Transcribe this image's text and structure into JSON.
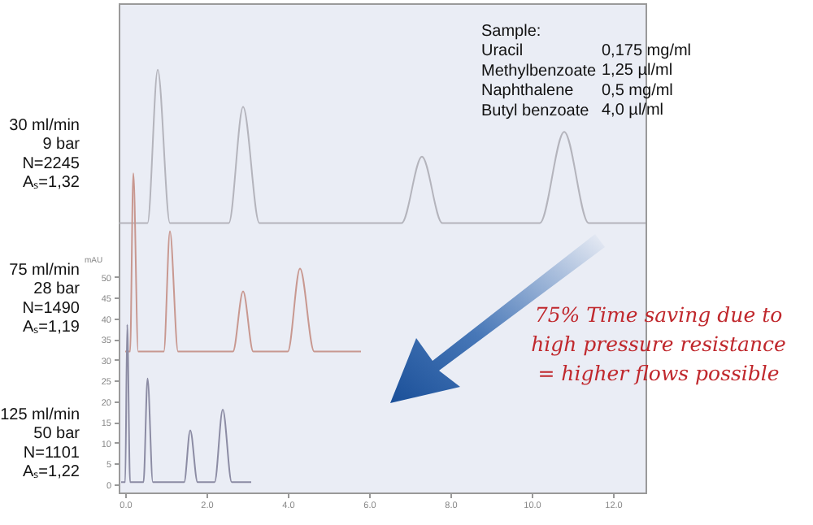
{
  "chart_data": {
    "type": "line",
    "ylabel": "mAU",
    "xlim": [
      -0.16,
      12.8
    ],
    "xticks": [
      {
        "value": 0,
        "label": "0.0"
      },
      {
        "value": 2,
        "label": "2.0"
      },
      {
        "value": 4,
        "label": "4.0"
      },
      {
        "value": 6,
        "label": "6.0"
      },
      {
        "value": 8,
        "label": "8.0"
      },
      {
        "value": 10,
        "label": "10.0"
      },
      {
        "value": 12,
        "label": "12.0"
      }
    ],
    "ylim": [
      -2,
      116
    ],
    "yticks": [
      0,
      5,
      10,
      15,
      20,
      25,
      30,
      35,
      40,
      45,
      50
    ],
    "grid": false,
    "marker": "none",
    "series": [
      {
        "color": "#b4b4bc",
        "x": [
          -0.15,
          0.55,
          0.8,
          1.1,
          2.55,
          2.9,
          3.3,
          6.8,
          7.3,
          7.8,
          10.2,
          10.8,
          11.4,
          12.8
        ],
        "values": [
          63,
          63,
          100,
          63,
          63,
          91,
          63,
          63,
          79,
          63,
          63,
          85,
          63,
          63
        ]
      },
      {
        "color": "#c89890",
        "x": [
          0,
          0.12,
          0.2,
          0.32,
          0.95,
          1.1,
          1.3,
          2.65,
          2.9,
          3.15,
          4.0,
          4.3,
          4.65,
          5.8
        ],
        "values": [
          32,
          32,
          75,
          32,
          32,
          61,
          32,
          32,
          46.5,
          32,
          32,
          52,
          32,
          32
        ]
      },
      {
        "color": "#8c8ca4",
        "x": [
          -0.1,
          0,
          0.05,
          0.12,
          0.45,
          0.55,
          0.68,
          1.45,
          1.6,
          1.78,
          2.2,
          2.4,
          2.62,
          3.1
        ],
        "values": [
          0.5,
          0.5,
          38.5,
          0.5,
          0.5,
          25.5,
          0.5,
          0.5,
          13,
          0.5,
          0.5,
          18,
          0.5,
          0.5
        ]
      }
    ],
    "annotations": [
      "30 ml/min\n9 bar\nN=2245\nAₛ=1,32",
      "75 ml/min\n28 bar\nN=1490\nAₛ=1,19",
      "125 ml/min\n50 bar\nN=1101\nAₛ=1,22",
      "Sample:\nUracil\nMethylbenzoate\nNaphthalene\nButyl benzoate",
      "0,175 mg/ml\n1,25 µl/ml\n0,5 mg/ml\n4,0 µl/ml",
      "75% Time saving due to\nhigh pressure resistance\n= higher flows possible"
    ]
  }
}
